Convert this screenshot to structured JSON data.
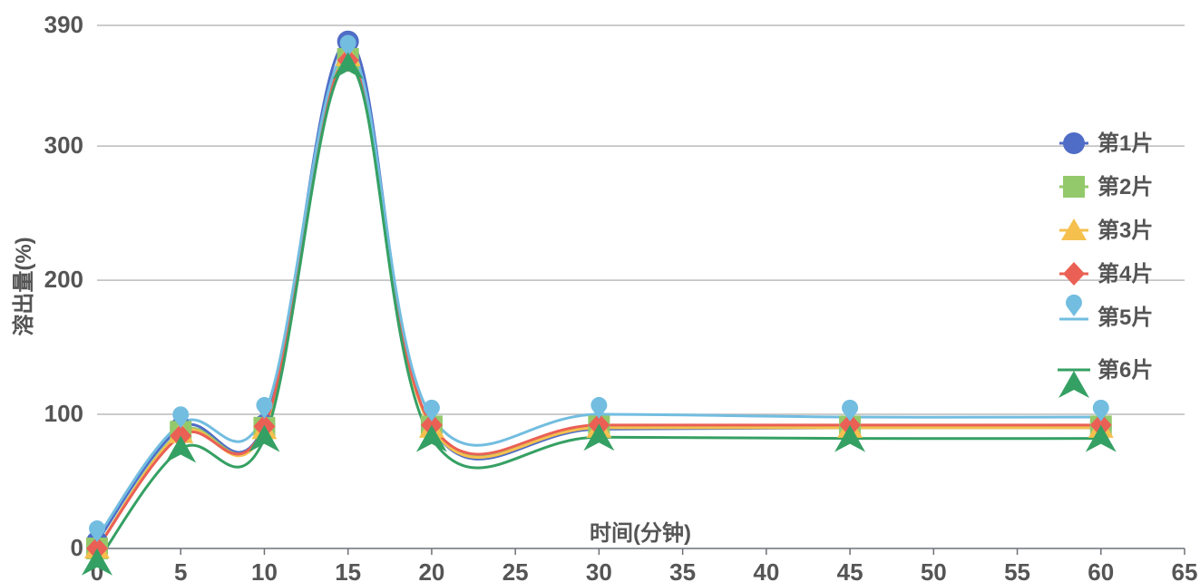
{
  "chart_data": {
    "type": "line",
    "title": "",
    "xlabel": "时间(分钟)",
    "ylabel": "溶出量(%)",
    "xlim": [
      0,
      65
    ],
    "ylim": [
      0,
      390
    ],
    "x_ticks": [
      0,
      5,
      10,
      15,
      20,
      25,
      30,
      35,
      40,
      45,
      50,
      55,
      60,
      65
    ],
    "y_ticks": [
      0,
      100,
      200,
      300,
      390
    ],
    "grid": "horizontal",
    "legend_position": "right",
    "x": [
      0,
      5,
      10,
      15,
      20,
      30,
      45,
      60
    ],
    "series": [
      {
        "name": "第1片",
        "marker": "circle",
        "color": "#4f6cc6",
        "values": [
          5,
          90,
          92,
          378,
          90,
          89,
          90,
          90
        ]
      },
      {
        "name": "第2片",
        "marker": "square",
        "color": "#93c96b",
        "values": [
          0,
          87,
          90,
          365,
          91,
          91,
          91,
          91
        ]
      },
      {
        "name": "第3片",
        "marker": "triangle",
        "color": "#f5c04e",
        "values": [
          0,
          86,
          89,
          367,
          90,
          90,
          90,
          90
        ]
      },
      {
        "name": "第4片",
        "marker": "diamond",
        "color": "#ea6055",
        "values": [
          0,
          84,
          91,
          364,
          92,
          92,
          92,
          92
        ]
      },
      {
        "name": "第5片",
        "marker": "pin",
        "color": "#72bde0",
        "values": [
          8,
          93,
          100,
          370,
          98,
          100,
          98,
          98
        ]
      },
      {
        "name": "第6片",
        "marker": "arrow",
        "color": "#35a063",
        "values": [
          -10,
          74,
          82,
          360,
          82,
          83,
          82,
          82
        ]
      }
    ]
  }
}
